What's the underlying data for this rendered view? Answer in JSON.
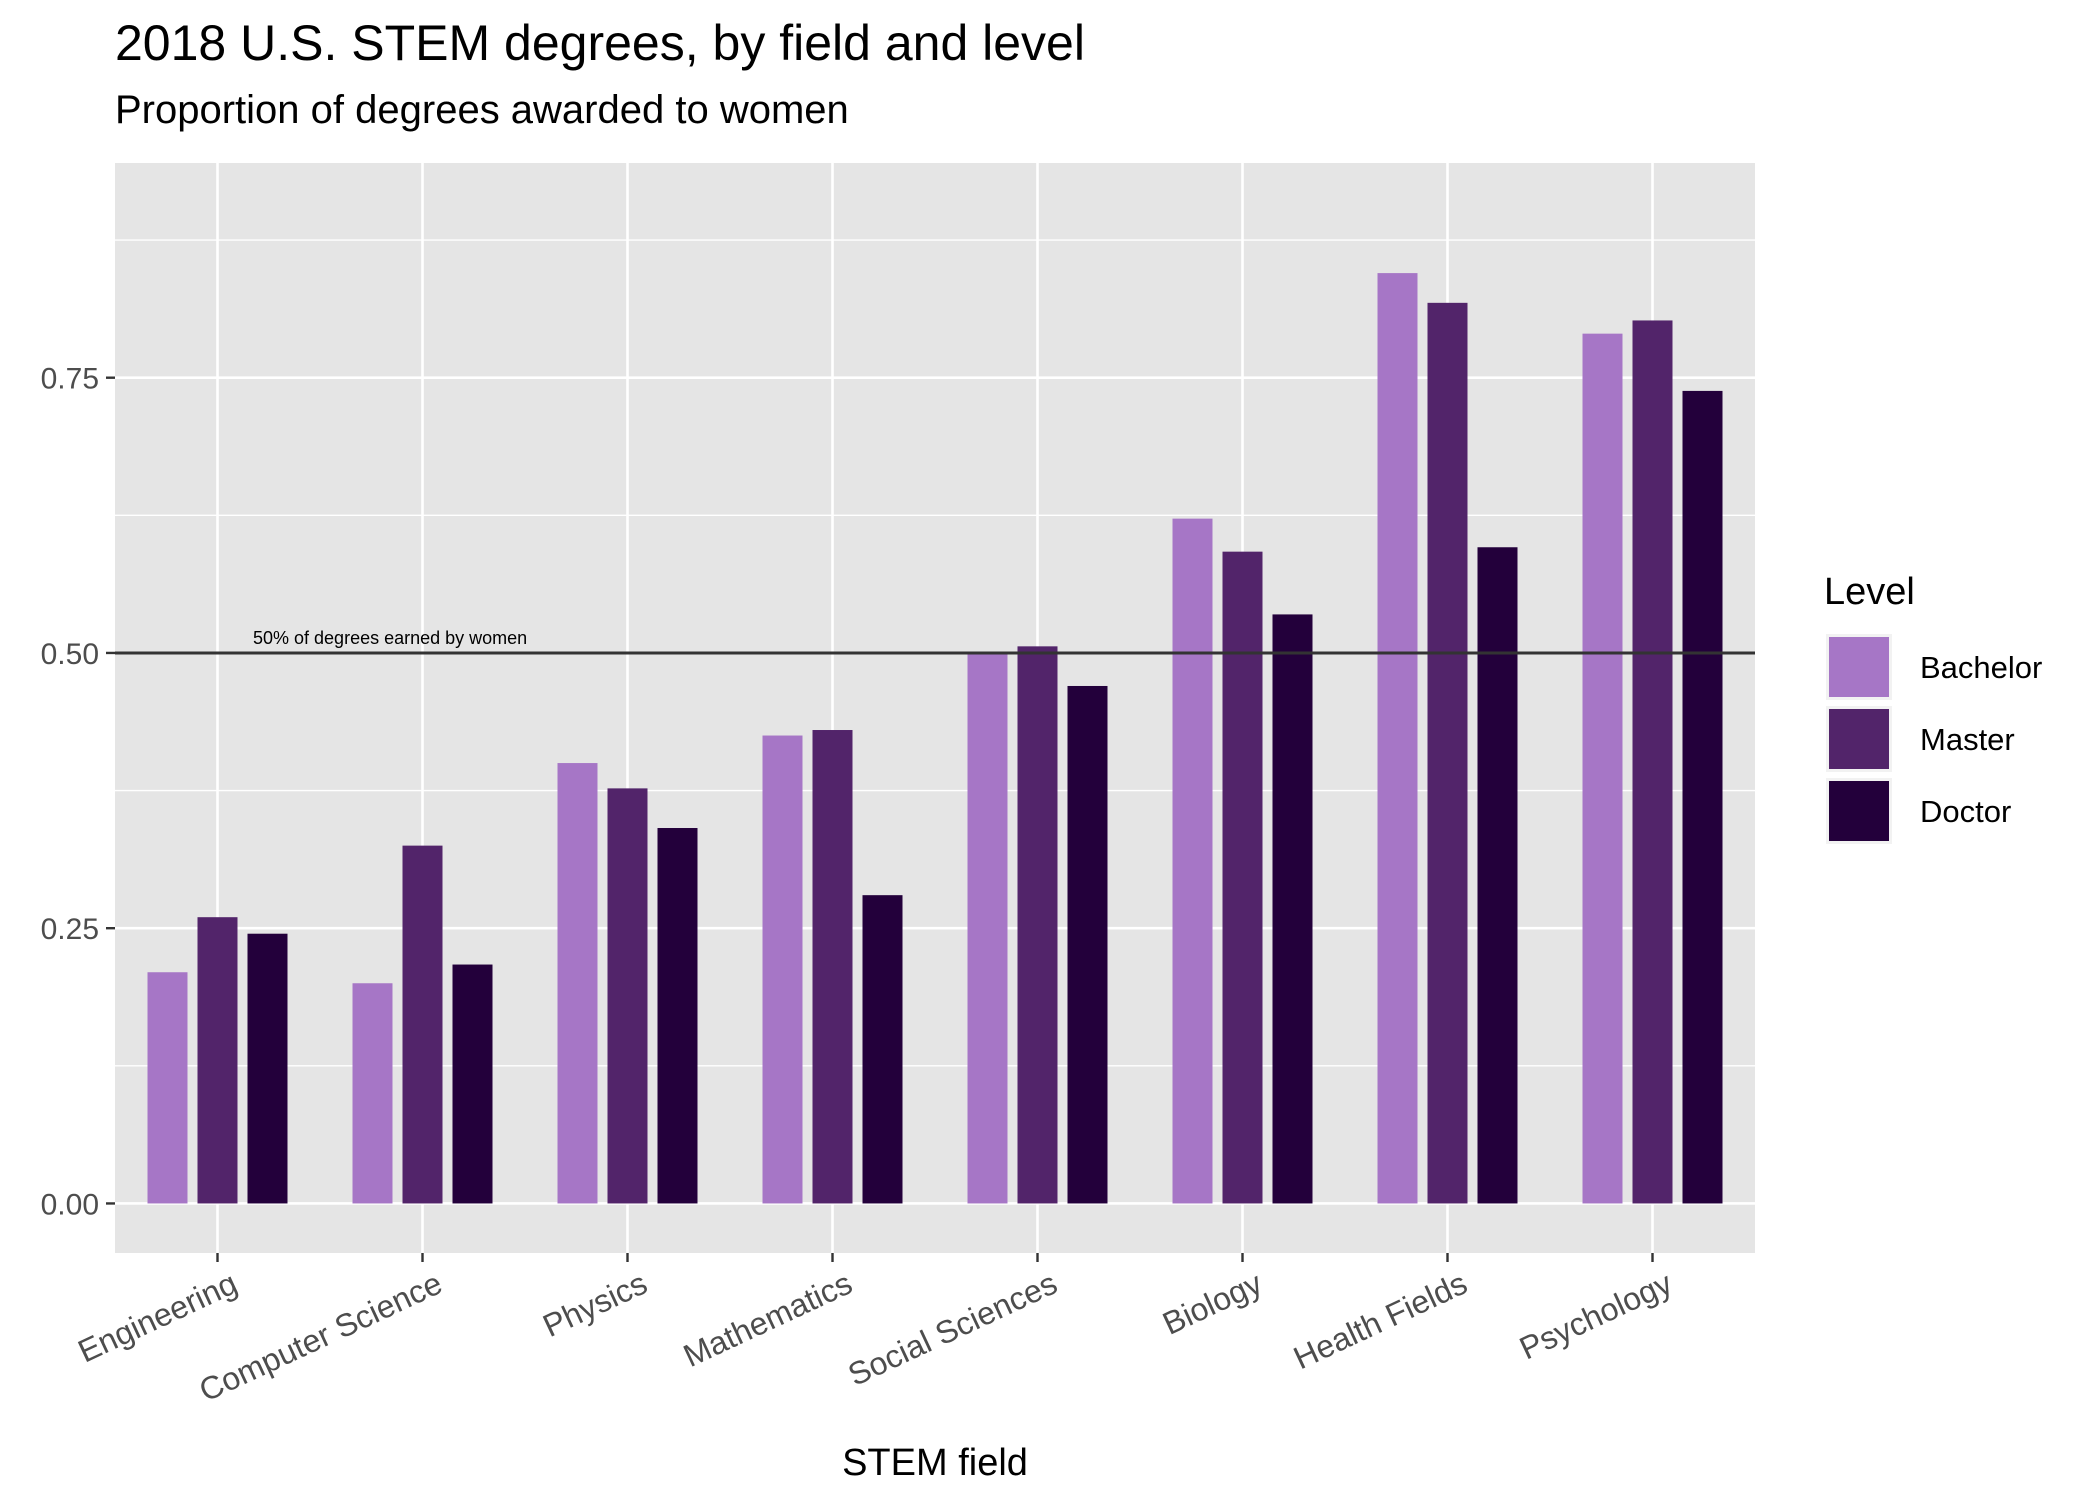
{
  "chart_data": {
    "type": "bar",
    "title": "2018 U.S. STEM degrees, by field and level",
    "subtitle": "Proportion of degrees awarded to women",
    "xlabel": "STEM field",
    "ylabel": "",
    "ylim": [
      -0.045,
      0.945
    ],
    "yticks": [
      0.0,
      0.25,
      0.5,
      0.75
    ],
    "ytick_labels": [
      "0.00",
      "0.25",
      "0.50",
      "0.75"
    ],
    "grid": true,
    "legend_title": "Level",
    "legend_position": "right",
    "categories": [
      "Engineering",
      "Computer Science",
      "Physics",
      "Mathematics",
      "Social Sciences",
      "Biology",
      "Health Fields",
      "Psychology"
    ],
    "series": [
      {
        "name": "Bachelor",
        "color": "#a676c6",
        "values": [
          0.21,
          0.2,
          0.4,
          0.425,
          0.5,
          0.622,
          0.845,
          0.79
        ]
      },
      {
        "name": "Master",
        "color": "#52246a",
        "values": [
          0.26,
          0.325,
          0.377,
          0.43,
          0.506,
          0.592,
          0.818,
          0.802
        ]
      },
      {
        "name": "Doctor",
        "color": "#23003b",
        "values": [
          0.245,
          0.217,
          0.341,
          0.28,
          0.47,
          0.535,
          0.596,
          0.738
        ]
      }
    ],
    "reference_line": {
      "y": 0.5,
      "label": "50% of degrees earned by women",
      "color": "#333333"
    }
  }
}
